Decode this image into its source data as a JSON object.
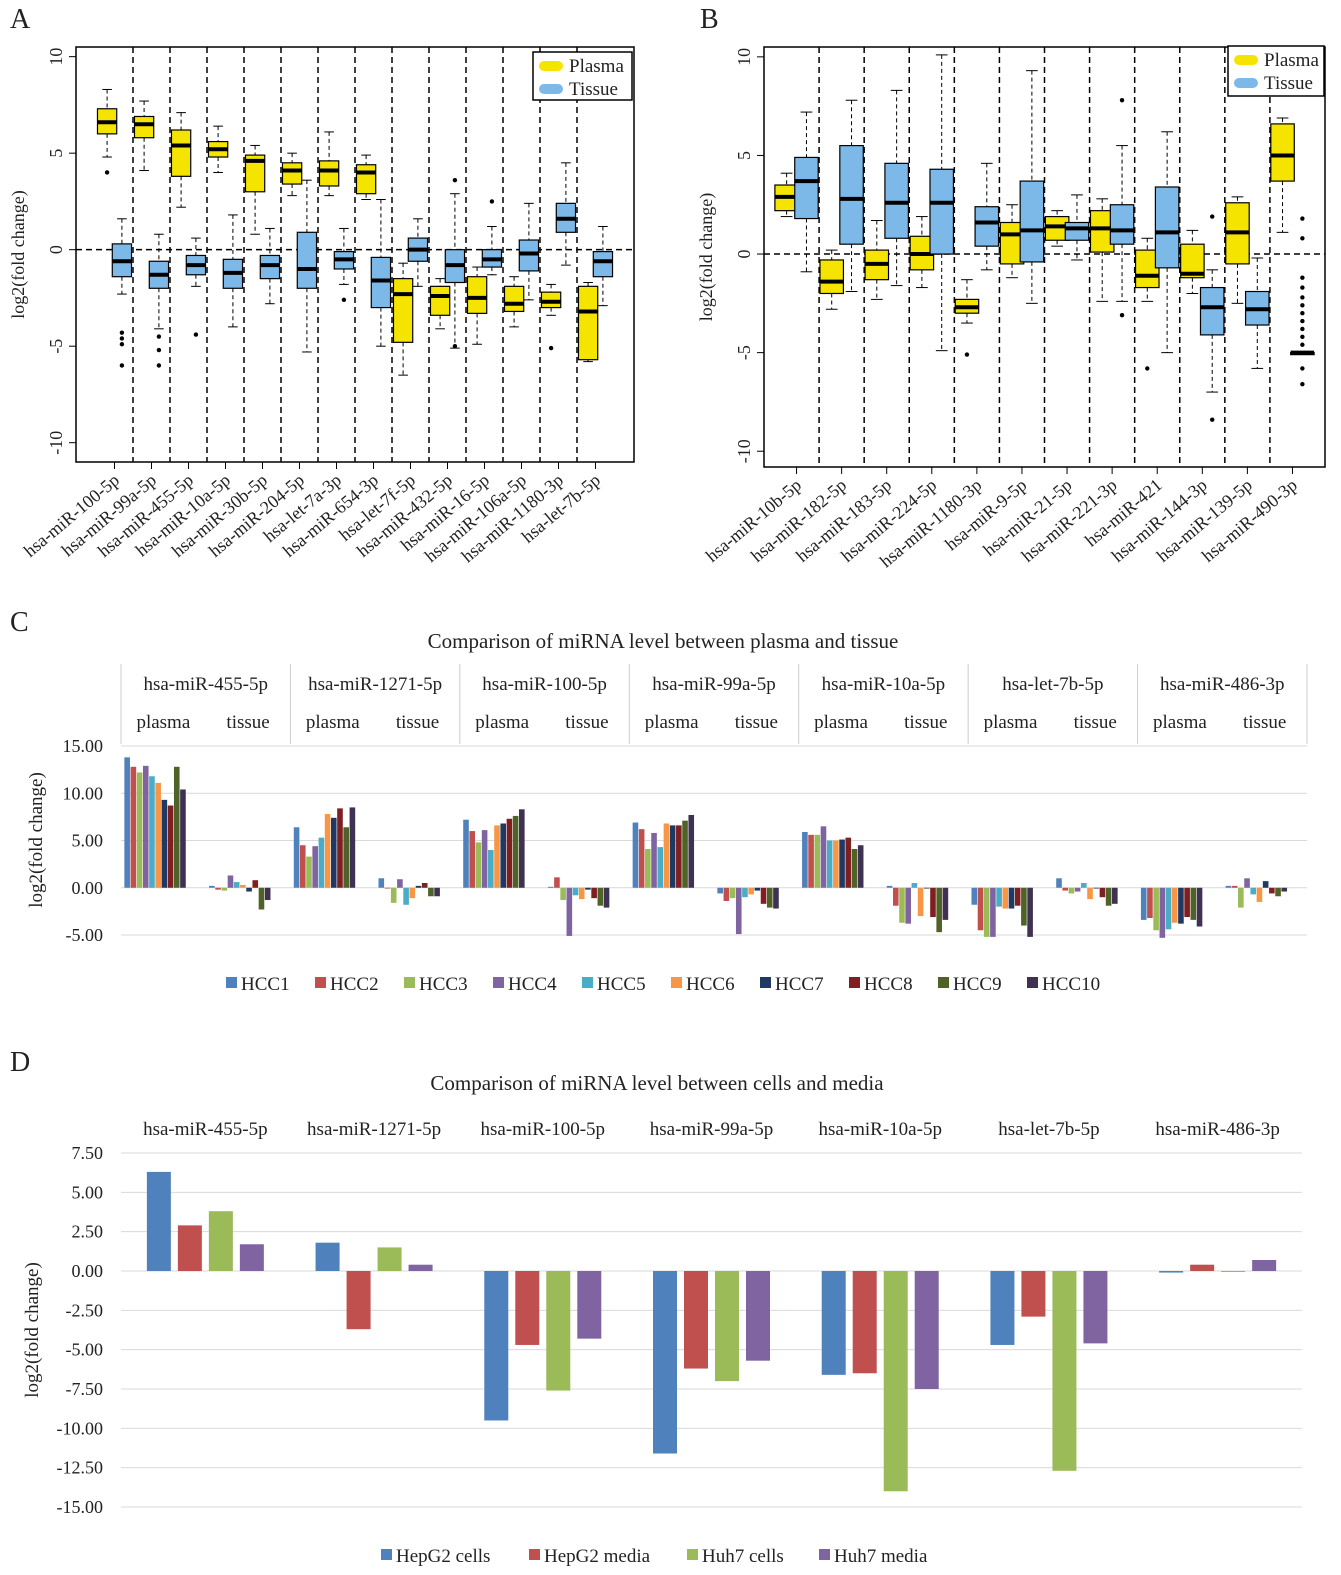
{
  "panels": {
    "A": "A",
    "B": "B",
    "C": "C",
    "D": "D"
  },
  "colors": {
    "plasma": "#f5e400",
    "tissue": "#7db9e8",
    "series": [
      "#4f81bd",
      "#c0504d",
      "#9bbb59",
      "#8064a2",
      "#4bacc6",
      "#f79646",
      "#1f3864",
      "#7f1f1f",
      "#4f6228",
      "#3f3151"
    ],
    "cells": [
      "#4f81bd",
      "#c0504d",
      "#9bbb59",
      "#8064a2"
    ]
  },
  "chart_data": [
    {
      "type": "box",
      "panel": "A",
      "ylabel": "log2(fold change)",
      "ylim": [
        -11,
        10.5
      ],
      "yticks": [
        -10,
        -5,
        0,
        5,
        10
      ],
      "legend": [
        "Plasma",
        "Tissue"
      ],
      "categories": [
        "hsa-miR-100-5p",
        "hsa-miR-99a-5p",
        "hsa-miR-455-5p",
        "hsa-miR-10a-5p",
        "hsa-miR-30b-5p",
        "hsa-miR-204-5p",
        "hsa-let-7a-3p",
        "hsa-miR-654-3p",
        "hsa-let-7f-5p",
        "hsa-miR-432-5p",
        "hsa-miR-16-5p",
        "hsa-miR-106a-5p",
        "hsa-miR-1180-3p",
        "hsa-let-7b-5p"
      ],
      "boxes": [
        {
          "group": "Plasma",
          "cat": 0,
          "min": 4.8,
          "q1": 6.0,
          "med": 6.6,
          "q3": 7.3,
          "max": 8.3,
          "outliers": [
            4.0
          ]
        },
        {
          "group": "Tissue",
          "cat": 0,
          "min": -2.3,
          "q1": -1.4,
          "med": -0.6,
          "q3": 0.3,
          "max": 1.6,
          "outliers": [
            -4.3,
            -4.6,
            -4.9,
            -6.0
          ]
        },
        {
          "group": "Plasma",
          "cat": 1,
          "min": 4.1,
          "q1": 5.8,
          "med": 6.5,
          "q3": 6.9,
          "max": 7.7,
          "outliers": []
        },
        {
          "group": "Tissue",
          "cat": 1,
          "min": -4.1,
          "q1": -2.0,
          "med": -1.3,
          "q3": -0.6,
          "max": 0.8,
          "outliers": [
            -4.5,
            -5.2,
            -6.0
          ]
        },
        {
          "group": "Plasma",
          "cat": 2,
          "min": 2.2,
          "q1": 3.8,
          "med": 5.4,
          "q3": 6.2,
          "max": 7.1,
          "outliers": []
        },
        {
          "group": "Tissue",
          "cat": 2,
          "min": -1.9,
          "q1": -1.3,
          "med": -0.8,
          "q3": -0.3,
          "max": 0.6,
          "outliers": [
            -4.4
          ]
        },
        {
          "group": "Plasma",
          "cat": 3,
          "min": 4.0,
          "q1": 4.8,
          "med": 5.2,
          "q3": 5.6,
          "max": 6.4,
          "outliers": []
        },
        {
          "group": "Tissue",
          "cat": 3,
          "min": -4.0,
          "q1": -2.0,
          "med": -1.2,
          "q3": -0.5,
          "max": 1.8,
          "outliers": []
        },
        {
          "group": "Plasma",
          "cat": 4,
          "min": 0.8,
          "q1": 3.0,
          "med": 4.6,
          "q3": 4.9,
          "max": 5.4,
          "outliers": []
        },
        {
          "group": "Tissue",
          "cat": 4,
          "min": -2.8,
          "q1": -1.5,
          "med": -0.8,
          "q3": -0.3,
          "max": 1.1,
          "outliers": []
        },
        {
          "group": "Plasma",
          "cat": 5,
          "min": 2.8,
          "q1": 3.4,
          "med": 4.1,
          "q3": 4.5,
          "max": 5.0,
          "outliers": []
        },
        {
          "group": "Tissue",
          "cat": 5,
          "min": -5.3,
          "q1": -2.0,
          "med": -1.0,
          "q3": 0.9,
          "max": 3.6,
          "outliers": []
        },
        {
          "group": "Plasma",
          "cat": 6,
          "min": 2.8,
          "q1": 3.3,
          "med": 4.1,
          "q3": 4.6,
          "max": 6.1,
          "outliers": []
        },
        {
          "group": "Tissue",
          "cat": 6,
          "min": -1.8,
          "q1": -1.0,
          "med": -0.5,
          "q3": -0.1,
          "max": 1.1,
          "outliers": [
            -2.6
          ]
        },
        {
          "group": "Plasma",
          "cat": 7,
          "min": 2.6,
          "q1": 2.9,
          "med": 4.0,
          "q3": 4.4,
          "max": 4.9,
          "outliers": []
        },
        {
          "group": "Tissue",
          "cat": 7,
          "min": -5.0,
          "q1": -3.0,
          "med": -1.6,
          "q3": -0.4,
          "max": 2.6,
          "outliers": []
        },
        {
          "group": "Plasma",
          "cat": 8,
          "min": -6.5,
          "q1": -4.8,
          "med": -2.3,
          "q3": -1.5,
          "max": -0.7,
          "outliers": []
        },
        {
          "group": "Tissue",
          "cat": 8,
          "min": -1.9,
          "q1": -0.6,
          "med": 0.0,
          "q3": 0.6,
          "max": 1.6,
          "outliers": []
        },
        {
          "group": "Plasma",
          "cat": 9,
          "min": -4.1,
          "q1": -3.4,
          "med": -2.4,
          "q3": -1.9,
          "max": -1.5,
          "outliers": []
        },
        {
          "group": "Tissue",
          "cat": 9,
          "min": -5.1,
          "q1": -1.7,
          "med": -0.8,
          "q3": 0.0,
          "max": 2.9,
          "outliers": [
            3.6,
            -5.0
          ]
        },
        {
          "group": "Plasma",
          "cat": 10,
          "min": -4.9,
          "q1": -3.3,
          "med": -2.5,
          "q3": -1.4,
          "max": -0.9,
          "outliers": []
        },
        {
          "group": "Tissue",
          "cat": 10,
          "min": -1.3,
          "q1": -0.9,
          "med": -0.5,
          "q3": 0.0,
          "max": 1.2,
          "outliers": [
            2.5
          ]
        },
        {
          "group": "Plasma",
          "cat": 11,
          "min": -4.0,
          "q1": -3.2,
          "med": -2.8,
          "q3": -1.9,
          "max": -1.4,
          "outliers": []
        },
        {
          "group": "Tissue",
          "cat": 11,
          "min": -2.6,
          "q1": -1.1,
          "med": -0.2,
          "q3": 0.5,
          "max": 2.4,
          "outliers": []
        },
        {
          "group": "Plasma",
          "cat": 12,
          "min": -3.4,
          "q1": -3.0,
          "med": -2.7,
          "q3": -2.2,
          "max": -1.8,
          "outliers": [
            -5.1
          ]
        },
        {
          "group": "Tissue",
          "cat": 12,
          "min": -0.8,
          "q1": 0.9,
          "med": 1.6,
          "q3": 2.4,
          "max": 4.5,
          "outliers": []
        },
        {
          "group": "Plasma",
          "cat": 13,
          "min": -5.8,
          "q1": -5.7,
          "med": -3.2,
          "q3": -1.9,
          "max": -1.7,
          "outliers": []
        },
        {
          "group": "Tissue",
          "cat": 13,
          "min": -2.9,
          "q1": -1.4,
          "med": -0.6,
          "q3": -0.1,
          "max": 1.2,
          "outliers": []
        }
      ]
    },
    {
      "type": "box",
      "panel": "B",
      "ylabel": "log2(fold change)",
      "ylim": [
        -10.8,
        10.5
      ],
      "yticks": [
        -10,
        -5,
        0,
        5,
        10
      ],
      "legend": [
        "Plasma",
        "Tissue"
      ],
      "categories": [
        "hsa-miR-10b-5p",
        "hsa-miR-182-5p",
        "hsa-miR-183-5p",
        "hsa-miR-224-5p",
        "hsa-miR-1180-3p",
        "hsa-miR-9-5p",
        "hsa-miR-21-5p",
        "hsa-miR-221-3p",
        "hsa-miR-421",
        "hsa-miR-144-3p",
        "hsa-miR-139-5p",
        "hsa-miR-490-3p"
      ],
      "boxes": [
        {
          "group": "Plasma",
          "cat": 0,
          "min": 1.9,
          "q1": 2.2,
          "med": 2.9,
          "q3": 3.5,
          "max": 4.1,
          "outliers": []
        },
        {
          "group": "Tissue",
          "cat": 0,
          "min": -0.9,
          "q1": 1.8,
          "med": 3.7,
          "q3": 4.9,
          "max": 7.2,
          "outliers": []
        },
        {
          "group": "Plasma",
          "cat": 1,
          "min": -2.8,
          "q1": -2.0,
          "med": -1.4,
          "q3": -0.3,
          "max": 0.2,
          "outliers": []
        },
        {
          "group": "Tissue",
          "cat": 1,
          "min": -1.9,
          "q1": 0.5,
          "med": 2.8,
          "q3": 5.5,
          "max": 7.8,
          "outliers": []
        },
        {
          "group": "Plasma",
          "cat": 2,
          "min": -2.3,
          "q1": -1.3,
          "med": -0.5,
          "q3": 0.2,
          "max": 1.7,
          "outliers": []
        },
        {
          "group": "Tissue",
          "cat": 2,
          "min": -1.6,
          "q1": 0.8,
          "med": 2.6,
          "q3": 4.6,
          "max": 8.3,
          "outliers": []
        },
        {
          "group": "Plasma",
          "cat": 3,
          "min": -1.7,
          "q1": -0.8,
          "med": 0.0,
          "q3": 0.9,
          "max": 1.9,
          "outliers": []
        },
        {
          "group": "Tissue",
          "cat": 3,
          "min": -4.9,
          "q1": 0.0,
          "med": 2.6,
          "q3": 4.3,
          "max": 10.1,
          "outliers": []
        },
        {
          "group": "Plasma",
          "cat": 4,
          "min": -3.5,
          "q1": -3.0,
          "med": -2.7,
          "q3": -2.3,
          "max": -1.3,
          "outliers": [
            -5.1
          ]
        },
        {
          "group": "Tissue",
          "cat": 4,
          "min": -0.8,
          "q1": 0.4,
          "med": 1.6,
          "q3": 2.4,
          "max": 4.6,
          "outliers": []
        },
        {
          "group": "Plasma",
          "cat": 5,
          "min": -1.2,
          "q1": -0.5,
          "med": 1.0,
          "q3": 1.6,
          "max": 2.5,
          "outliers": []
        },
        {
          "group": "Tissue",
          "cat": 5,
          "min": -2.5,
          "q1": -0.4,
          "med": 1.2,
          "q3": 3.7,
          "max": 9.3,
          "outliers": []
        },
        {
          "group": "Plasma",
          "cat": 6,
          "min": 0.4,
          "q1": 0.7,
          "med": 1.4,
          "q3": 1.9,
          "max": 2.2,
          "outliers": []
        },
        {
          "group": "Tissue",
          "cat": 6,
          "min": -0.3,
          "q1": 0.7,
          "med": 1.3,
          "q3": 1.6,
          "max": 3.0,
          "outliers": []
        },
        {
          "group": "Plasma",
          "cat": 7,
          "min": -2.4,
          "q1": 0.1,
          "med": 1.3,
          "q3": 2.2,
          "max": 2.8,
          "outliers": []
        },
        {
          "group": "Tissue",
          "cat": 7,
          "min": -2.4,
          "q1": 0.5,
          "med": 1.2,
          "q3": 2.5,
          "max": 5.5,
          "outliers": [
            7.8,
            -3.1
          ]
        },
        {
          "group": "Plasma",
          "cat": 8,
          "min": -2.4,
          "q1": -1.7,
          "med": -1.1,
          "q3": 0.2,
          "max": 0.8,
          "outliers": [
            -5.8
          ]
        },
        {
          "group": "Tissue",
          "cat": 8,
          "min": -5.0,
          "q1": -0.7,
          "med": 1.1,
          "q3": 3.4,
          "max": 6.2,
          "outliers": []
        },
        {
          "group": "Plasma",
          "cat": 9,
          "min": -2.0,
          "q1": -1.2,
          "med": -1.0,
          "q3": 0.5,
          "max": 1.2,
          "outliers": []
        },
        {
          "group": "Tissue",
          "cat": 9,
          "min": -7.0,
          "q1": -4.1,
          "med": -2.7,
          "q3": -1.7,
          "max": -0.8,
          "outliers": [
            1.9,
            -8.4
          ]
        },
        {
          "group": "Plasma",
          "cat": 10,
          "min": -2.5,
          "q1": -0.5,
          "med": 1.1,
          "q3": 2.6,
          "max": 2.9,
          "outliers": []
        },
        {
          "group": "Tissue",
          "cat": 10,
          "min": -5.8,
          "q1": -3.6,
          "med": -2.8,
          "q3": -1.9,
          "max": -0.2,
          "outliers": []
        },
        {
          "group": "Plasma",
          "cat": 11,
          "min": 1.1,
          "q1": 3.7,
          "med": 5.0,
          "q3": 6.6,
          "max": 6.9,
          "outliers": []
        },
        {
          "group": "Tissue",
          "cat": 11,
          "min": -5.0,
          "q1": -5.0,
          "med": -5.0,
          "q3": -5.0,
          "max": -5.0,
          "outliers": [
            1.8,
            0.8,
            -1.2,
            -1.7,
            -2.2,
            -2.6,
            -3.0,
            -3.4,
            -3.8,
            -4.2,
            -4.6,
            -5.8,
            -6.6
          ]
        }
      ]
    },
    {
      "type": "bar",
      "panel": "C",
      "title": "Comparison of miRNA level between plasma and tissue",
      "ylabel": "log2(fold change)",
      "ylim": [
        -5,
        15
      ],
      "yticks": [
        "15.00",
        "10.00",
        "5.00",
        "0.00",
        "-5.00"
      ],
      "groups": [
        "hsa-miR-455-5p",
        "hsa-miR-1271-5p",
        "hsa-miR-100-5p",
        "hsa-miR-99a-5p",
        "hsa-miR-10a-5p",
        "hsa-let-7b-5p",
        "hsa-miR-486-3p"
      ],
      "subgroups": [
        "plasma",
        "tissue"
      ],
      "series_names": [
        "HCC1",
        "HCC2",
        "HCC3",
        "HCC4",
        "HCC5",
        "HCC6",
        "HCC7",
        "HCC8",
        "HCC9",
        "HCC10"
      ],
      "values": [
        [
          [
            13.8,
            12.8,
            12.2,
            12.9,
            11.8,
            11.1,
            9.3,
            8.7,
            12.8,
            10.4
          ],
          [
            0.2,
            -0.2,
            -0.3,
            1.3,
            0.6,
            0.3,
            -0.4,
            0.8,
            -2.3,
            -1.3
          ]
        ],
        [
          [
            6.4,
            4.5,
            3.3,
            4.4,
            5.3,
            7.8,
            7.4,
            8.4,
            6.4,
            8.5
          ],
          [
            1.0,
            0.0,
            -1.6,
            0.9,
            -1.8,
            -1.1,
            0.2,
            0.5,
            -0.9,
            -0.9
          ]
        ],
        [
          [
            7.2,
            6.0,
            4.8,
            6.1,
            4.0,
            6.6,
            6.8,
            7.3,
            7.6,
            8.3
          ],
          [
            0.1,
            1.1,
            -1.3,
            -5.1,
            -0.8,
            -1.2,
            -0.2,
            -1.1,
            -1.9,
            -2.1
          ]
        ],
        [
          [
            6.9,
            6.2,
            4.1,
            5.8,
            4.3,
            6.8,
            6.6,
            6.6,
            7.1,
            7.7
          ],
          [
            -0.6,
            -1.4,
            -1.1,
            -4.9,
            -1.0,
            -0.7,
            -0.3,
            -1.7,
            -2.1,
            -2.2
          ]
        ],
        [
          [
            5.9,
            5.6,
            5.6,
            6.5,
            5.0,
            5.0,
            5.1,
            5.3,
            4.1,
            4.5
          ],
          [
            0.2,
            -1.9,
            -3.7,
            -3.8,
            0.5,
            -3.0,
            0.0,
            -3.1,
            -4.7,
            -3.4
          ]
        ],
        [
          [
            -1.8,
            -4.5,
            -5.2,
            -5.2,
            -2.0,
            -2.2,
            -2.2,
            -1.9,
            -4.0,
            -5.2
          ],
          [
            1.0,
            -0.3,
            -0.6,
            -0.4,
            0.5,
            -1.2,
            0.0,
            -1.0,
            -1.9,
            -1.7
          ]
        ],
        [
          [
            -3.4,
            -3.2,
            -4.5,
            -5.3,
            -4.4,
            -3.7,
            -3.8,
            -3.1,
            -3.4,
            -4.1
          ],
          [
            0.2,
            0.2,
            -2.1,
            1.0,
            -0.7,
            -1.5,
            0.7,
            -0.6,
            -0.9,
            -0.4
          ]
        ]
      ]
    },
    {
      "type": "bar",
      "panel": "D",
      "title": "Comparison of miRNA level between cells and media",
      "ylabel": "log2(fold change)",
      "ylim": [
        -15,
        7.5
      ],
      "yticks": [
        "7.50",
        "5.00",
        "2.50",
        "0.00",
        "-2.50",
        "-5.00",
        "-7.50",
        "-10.00",
        "-12.50",
        "-15.00"
      ],
      "categories": [
        "hsa-miR-455-5p",
        "hsa-miR-1271-5p",
        "hsa-miR-100-5p",
        "hsa-miR-99a-5p",
        "hsa-miR-10a-5p",
        "hsa-let-7b-5p",
        "hsa-miR-486-3p"
      ],
      "series": [
        {
          "name": "HepG2 cells",
          "values": [
            6.3,
            1.8,
            -9.5,
            -11.6,
            -6.6,
            -4.7,
            -0.1
          ]
        },
        {
          "name": "HepG2 media",
          "values": [
            2.9,
            -3.7,
            -4.7,
            -6.2,
            -6.5,
            -2.9,
            0.4
          ]
        },
        {
          "name": "Huh7 cells",
          "values": [
            3.8,
            1.5,
            -7.6,
            -7.0,
            -14.0,
            -12.7,
            0.0
          ]
        },
        {
          "name": "Huh7 media",
          "values": [
            1.7,
            0.4,
            -4.3,
            -5.7,
            -7.5,
            -4.6,
            0.7
          ]
        }
      ]
    }
  ]
}
